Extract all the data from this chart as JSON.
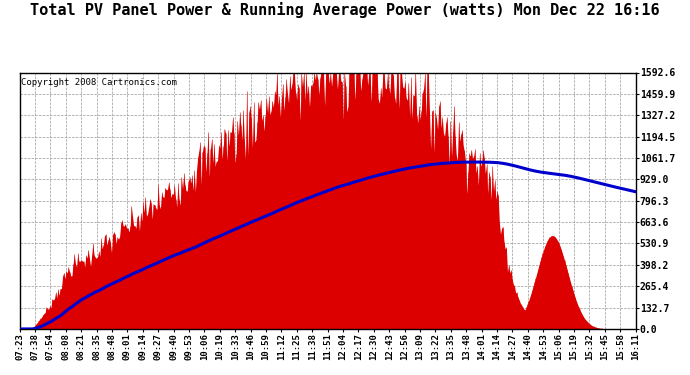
{
  "title": "Total PV Panel Power & Running Average Power (watts) Mon Dec 22 16:16",
  "copyright": "Copyright 2008 Cartronics.com",
  "yticks": [
    0.0,
    132.7,
    265.4,
    398.2,
    530.9,
    663.6,
    796.3,
    929.0,
    1061.7,
    1194.5,
    1327.2,
    1459.9,
    1592.6
  ],
  "ymax": 1592.6,
  "ymin": 0.0,
  "bar_color": "#dd0000",
  "avg_color": "#0000cc",
  "bg_color": "#ffffff",
  "grid_color": "#999999",
  "title_fontsize": 11,
  "copyright_fontsize": 6.5,
  "xtick_labels": [
    "07:23",
    "07:38",
    "07:54",
    "08:08",
    "08:21",
    "08:35",
    "08:48",
    "09:01",
    "09:14",
    "09:27",
    "09:40",
    "09:53",
    "10:06",
    "10:19",
    "10:33",
    "10:46",
    "10:59",
    "11:12",
    "11:25",
    "11:38",
    "11:51",
    "12:04",
    "12:17",
    "12:30",
    "12:43",
    "12:56",
    "13:09",
    "13:22",
    "13:35",
    "13:48",
    "14:01",
    "14:14",
    "14:27",
    "14:40",
    "14:53",
    "15:06",
    "15:19",
    "15:32",
    "15:45",
    "15:58",
    "16:11"
  ]
}
